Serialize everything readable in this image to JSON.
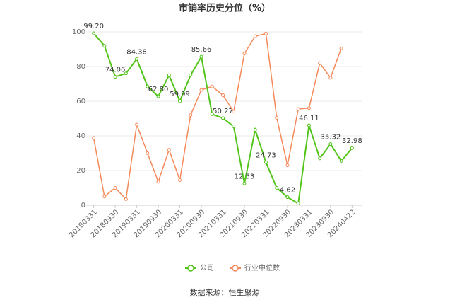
{
  "chart_data": {
    "type": "line",
    "title": "市销率历史分位（%）",
    "categories": [
      "20180331",
      null,
      "20180930",
      null,
      "20190331",
      null,
      "20190930",
      null,
      "20200331",
      null,
      "20200930",
      null,
      "20210331",
      null,
      "20210930",
      null,
      "20220331",
      null,
      "20220930",
      null,
      "20230331",
      null,
      "20230930",
      null,
      "20240422"
    ],
    "series": [
      {
        "name": "公司",
        "color": "#52c41a",
        "values": [
          99.2,
          92,
          74.06,
          76,
          84.38,
          68.5,
          62.8,
          75,
          59.99,
          75,
          85.66,
          52.5,
          50.27,
          45.5,
          12.53,
          43.5,
          24.73,
          10,
          4.62,
          1,
          46.11,
          27,
          35.32,
          25.5,
          32.98
        ],
        "value_labels": [
          "99.20",
          null,
          "74.06",
          null,
          "84.38",
          null,
          "62.80",
          null,
          "59.99",
          null,
          "85.66",
          null,
          "50.27",
          null,
          "12.53",
          null,
          "24.73",
          null,
          "4.62",
          null,
          "46.11",
          null,
          "35.32",
          null,
          "32.98"
        ]
      },
      {
        "name": "行业中位数",
        "color": "#f5895a",
        "values": [
          38.8,
          5,
          10,
          3.5,
          46.5,
          30,
          13.5,
          32,
          14.5,
          52,
          66.5,
          68.5,
          63.5,
          54,
          87.5,
          97.5,
          99,
          50.5,
          23,
          55.5,
          56,
          82,
          73.5,
          90.5,
          null
        ]
      }
    ],
    "ylim": [
      0,
      100
    ],
    "yticks": [
      0,
      20,
      40,
      60,
      80,
      100
    ],
    "grid": true,
    "source": "数据来源：恒生聚源"
  }
}
